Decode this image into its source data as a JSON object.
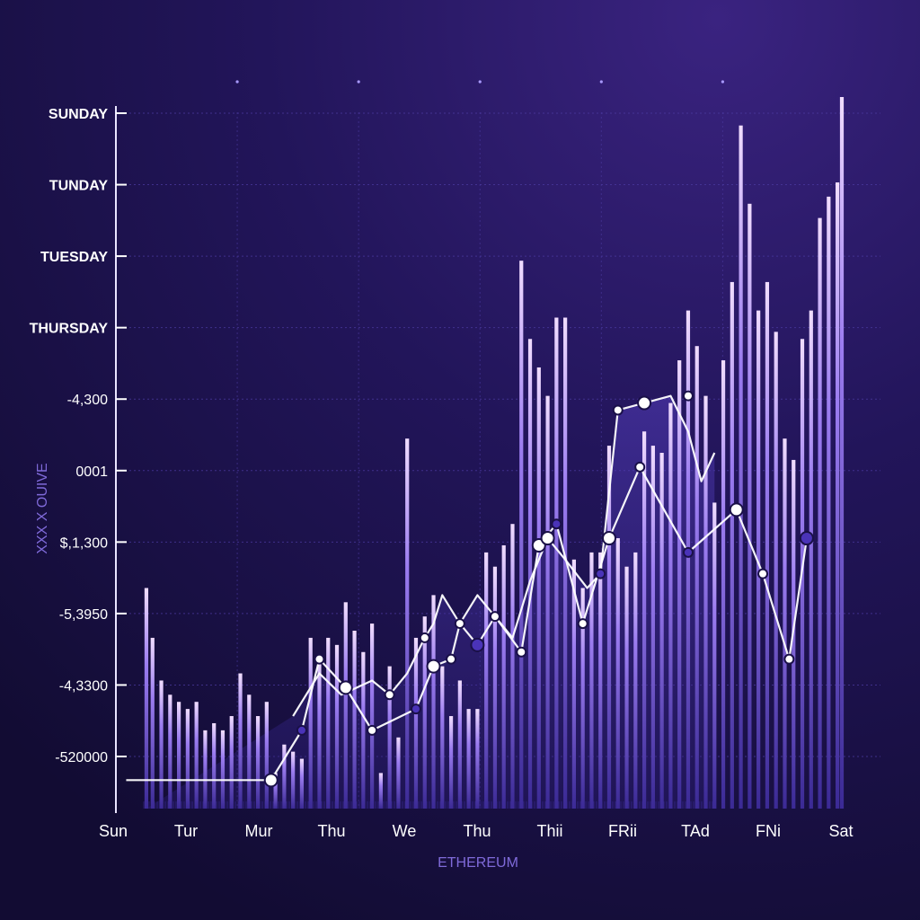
{
  "chart_data": {
    "type": "bar",
    "xlabel": "ETHEREUM",
    "ylabel": "XXX X OUIVE",
    "y_tick_labels": [
      "SUNDAY",
      "TUNDAY",
      "TUESDAY",
      "THURSDAY",
      "-4,300",
      "0001",
      "$,1,300",
      "-5,3950",
      "-4,3300",
      "-520000"
    ],
    "x_tick_labels": [
      "Sun",
      "Tur",
      "Mur",
      "Thu",
      "We",
      "Thu",
      "Thii",
      "FRii",
      "TAd",
      "FNi",
      "Sat"
    ],
    "ylim": [
      0,
      100
    ],
    "grid": true,
    "bars": {
      "x": [
        0.3,
        1.0,
        2.0,
        3.0,
        4.0,
        5.0,
        6.0,
        7.0,
        8.0,
        9.0,
        10.0,
        11.0,
        12.0,
        13.0,
        14.0,
        15.0,
        16.0,
        17.0,
        18.0,
        19.0,
        20.0,
        21.0,
        22.0,
        23.0,
        24.0,
        25.0,
        26.0,
        27.0,
        28.0,
        29.0,
        30.0,
        31.0,
        32.0,
        33.0,
        34.0,
        35.0,
        36.0,
        37.0,
        38.0,
        39.0,
        40.0,
        41.0,
        42.0,
        43.0,
        44.0,
        45.0,
        46.0,
        47.0,
        48.0,
        49.0,
        50.0,
        51.0,
        52.0,
        53.0,
        54.0,
        55.0,
        56.0,
        57.0,
        58.0,
        59.0,
        60.0,
        61.0,
        62.0,
        63.0,
        64.0,
        65.0,
        66.0,
        67.0,
        68.0,
        69.0,
        70.0,
        71.0,
        72.0,
        73.0,
        74.0,
        75.0,
        76.0,
        77.0,
        78.0,
        79.0,
        79.5
      ],
      "values": [
        31,
        24,
        18,
        16,
        15,
        14,
        15,
        11,
        12,
        11,
        13,
        19,
        16,
        13,
        15,
        5,
        9,
        8,
        7,
        24,
        21,
        24,
        23,
        29,
        25,
        22,
        26,
        5,
        20,
        10,
        52,
        24,
        27,
        30,
        20,
        13,
        18,
        14,
        14,
        36,
        34,
        37,
        40,
        77,
        66,
        62,
        58,
        69,
        69,
        35,
        31,
        36,
        36,
        51,
        38,
        34,
        36,
        53,
        51,
        50,
        57,
        63,
        70,
        65,
        58,
        43,
        63,
        74,
        96,
        85,
        70,
        74,
        67,
        52,
        49,
        66,
        70,
        83,
        86,
        88,
        100
      ]
    },
    "series": [
      {
        "x": [
          -2,
          14.5,
          18,
          20,
          23,
          26,
          31,
          33,
          35,
          36,
          38,
          40,
          43,
          45,
          47,
          50,
          53,
          56.5,
          62,
          67.5,
          70.5,
          73.5,
          75.5
        ],
        "values": [
          4,
          4,
          11,
          21,
          17,
          11,
          14,
          20,
          21,
          26,
          23,
          27,
          22,
          37,
          40,
          26,
          38,
          48,
          36,
          42,
          33,
          21,
          38
        ]
      },
      {
        "x": [
          17,
          20,
          22.5,
          26,
          28,
          30,
          32,
          33,
          34,
          36,
          38,
          42,
          44,
          46,
          48,
          50.5,
          52,
          54,
          57,
          60,
          62,
          63.5,
          65
        ],
        "values": [
          13,
          19,
          16,
          18,
          16,
          19,
          24,
          26,
          30,
          26,
          30,
          24,
          32,
          38,
          35,
          31,
          33,
          56,
          57,
          58,
          53,
          46,
          50
        ]
      }
    ],
    "markers": {
      "x": [
        14.5,
        18,
        20,
        23,
        26,
        31,
        33,
        35,
        36,
        38,
        40,
        43,
        45,
        47,
        50,
        53,
        56.5,
        62,
        67.5,
        70.5,
        73.5,
        75.5,
        28,
        32,
        46,
        52,
        54,
        57,
        62
      ],
      "values": [
        4,
        11,
        21,
        17,
        11,
        14,
        20,
        21,
        26,
        23,
        27,
        22,
        37,
        40,
        26,
        38,
        48,
        36,
        42,
        33,
        21,
        38,
        16,
        24,
        38,
        33,
        56,
        57,
        58
      ]
    }
  }
}
